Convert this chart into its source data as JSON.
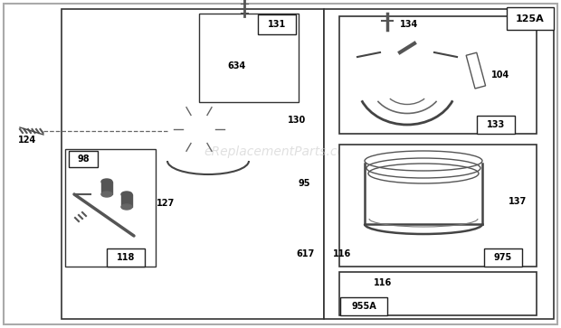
{
  "bg_color": "#ffffff",
  "page_label": "125A",
  "watermark_text": "eReplacementParts.com",
  "fig_width": 6.2,
  "fig_height": 3.63,
  "dpi": 100
}
